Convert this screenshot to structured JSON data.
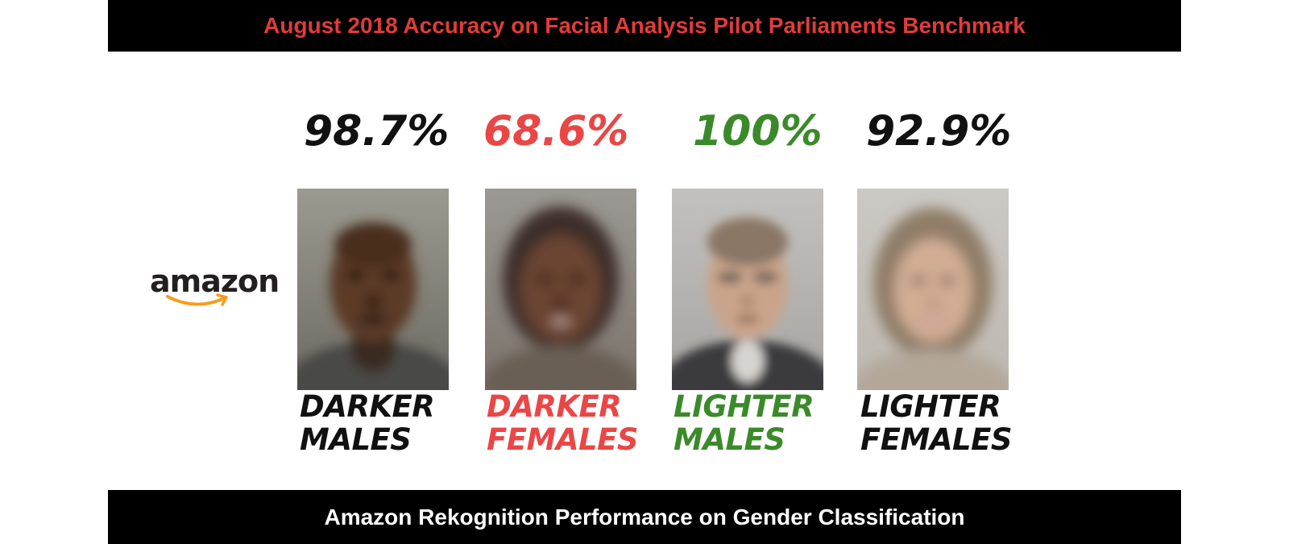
{
  "header": {
    "title": "August 2018 Accuracy on Facial Analysis Pilot Parliaments Benchmark"
  },
  "footer": {
    "caption": "Amazon Rekognition Performance on Gender Classification"
  },
  "brand": {
    "name": "amazon",
    "logo_text_color": "#231f20",
    "smile_color": "#f79c1c"
  },
  "colors": {
    "header_bg": "#000000",
    "header_text": "#e23b3b",
    "footer_text": "#ffffff",
    "black": "#111111",
    "red": "#ea4646",
    "green": "#3b8a2a"
  },
  "groups": [
    {
      "accuracy": "98.7%",
      "label_line1": "DARKER",
      "label_line2": "MALES",
      "color": "#111111",
      "face_icon": "darker-male-face-image"
    },
    {
      "accuracy": "68.6%",
      "label_line1": "DARKER",
      "label_line2": "FEMALES",
      "color": "#ea4646",
      "face_icon": "darker-female-face-image"
    },
    {
      "accuracy": "100%",
      "label_line1": "LIGHTER",
      "label_line2": "MALES",
      "color": "#3b8a2a",
      "face_icon": "lighter-male-face-image"
    },
    {
      "accuracy": "92.9%",
      "label_line1": "LIGHTER",
      "label_line2": "FEMALES",
      "color": "#111111",
      "face_icon": "lighter-female-face-image"
    }
  ]
}
